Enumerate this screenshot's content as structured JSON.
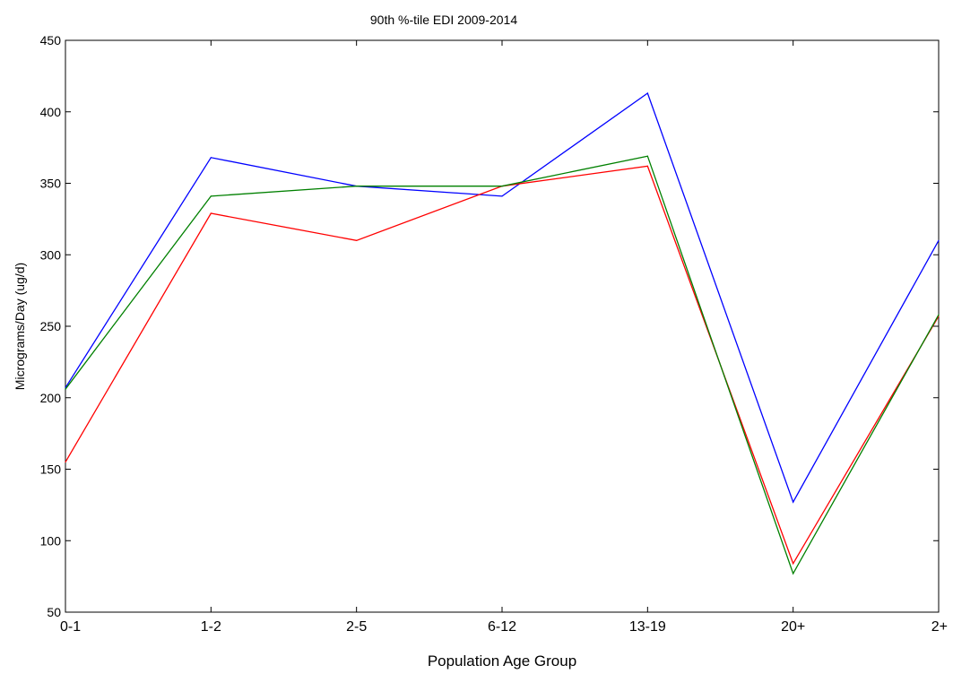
{
  "chart_data": {
    "type": "line",
    "title": "90th %-tile EDI 2009-2014",
    "xlabel": "Population Age Group",
    "ylabel": "Micrograms/Day (ug/d)",
    "categories": [
      "0-1",
      "1-2",
      "2-5",
      "6-12",
      "13-19",
      "20+",
      "2+"
    ],
    "ylim": [
      50,
      450
    ],
    "yticks": [
      50,
      100,
      150,
      200,
      250,
      300,
      350,
      400,
      450
    ],
    "grid": false,
    "legend": "none",
    "series": [
      {
        "color": "#0000ff",
        "values": [
          207,
          368,
          348,
          341,
          413,
          127,
          310
        ]
      },
      {
        "color": "#ff0000",
        "values": [
          155,
          329,
          310,
          348,
          362,
          84,
          257
        ]
      },
      {
        "color": "#008000",
        "values": [
          206,
          341,
          348,
          348,
          369,
          77,
          258
        ]
      }
    ]
  }
}
